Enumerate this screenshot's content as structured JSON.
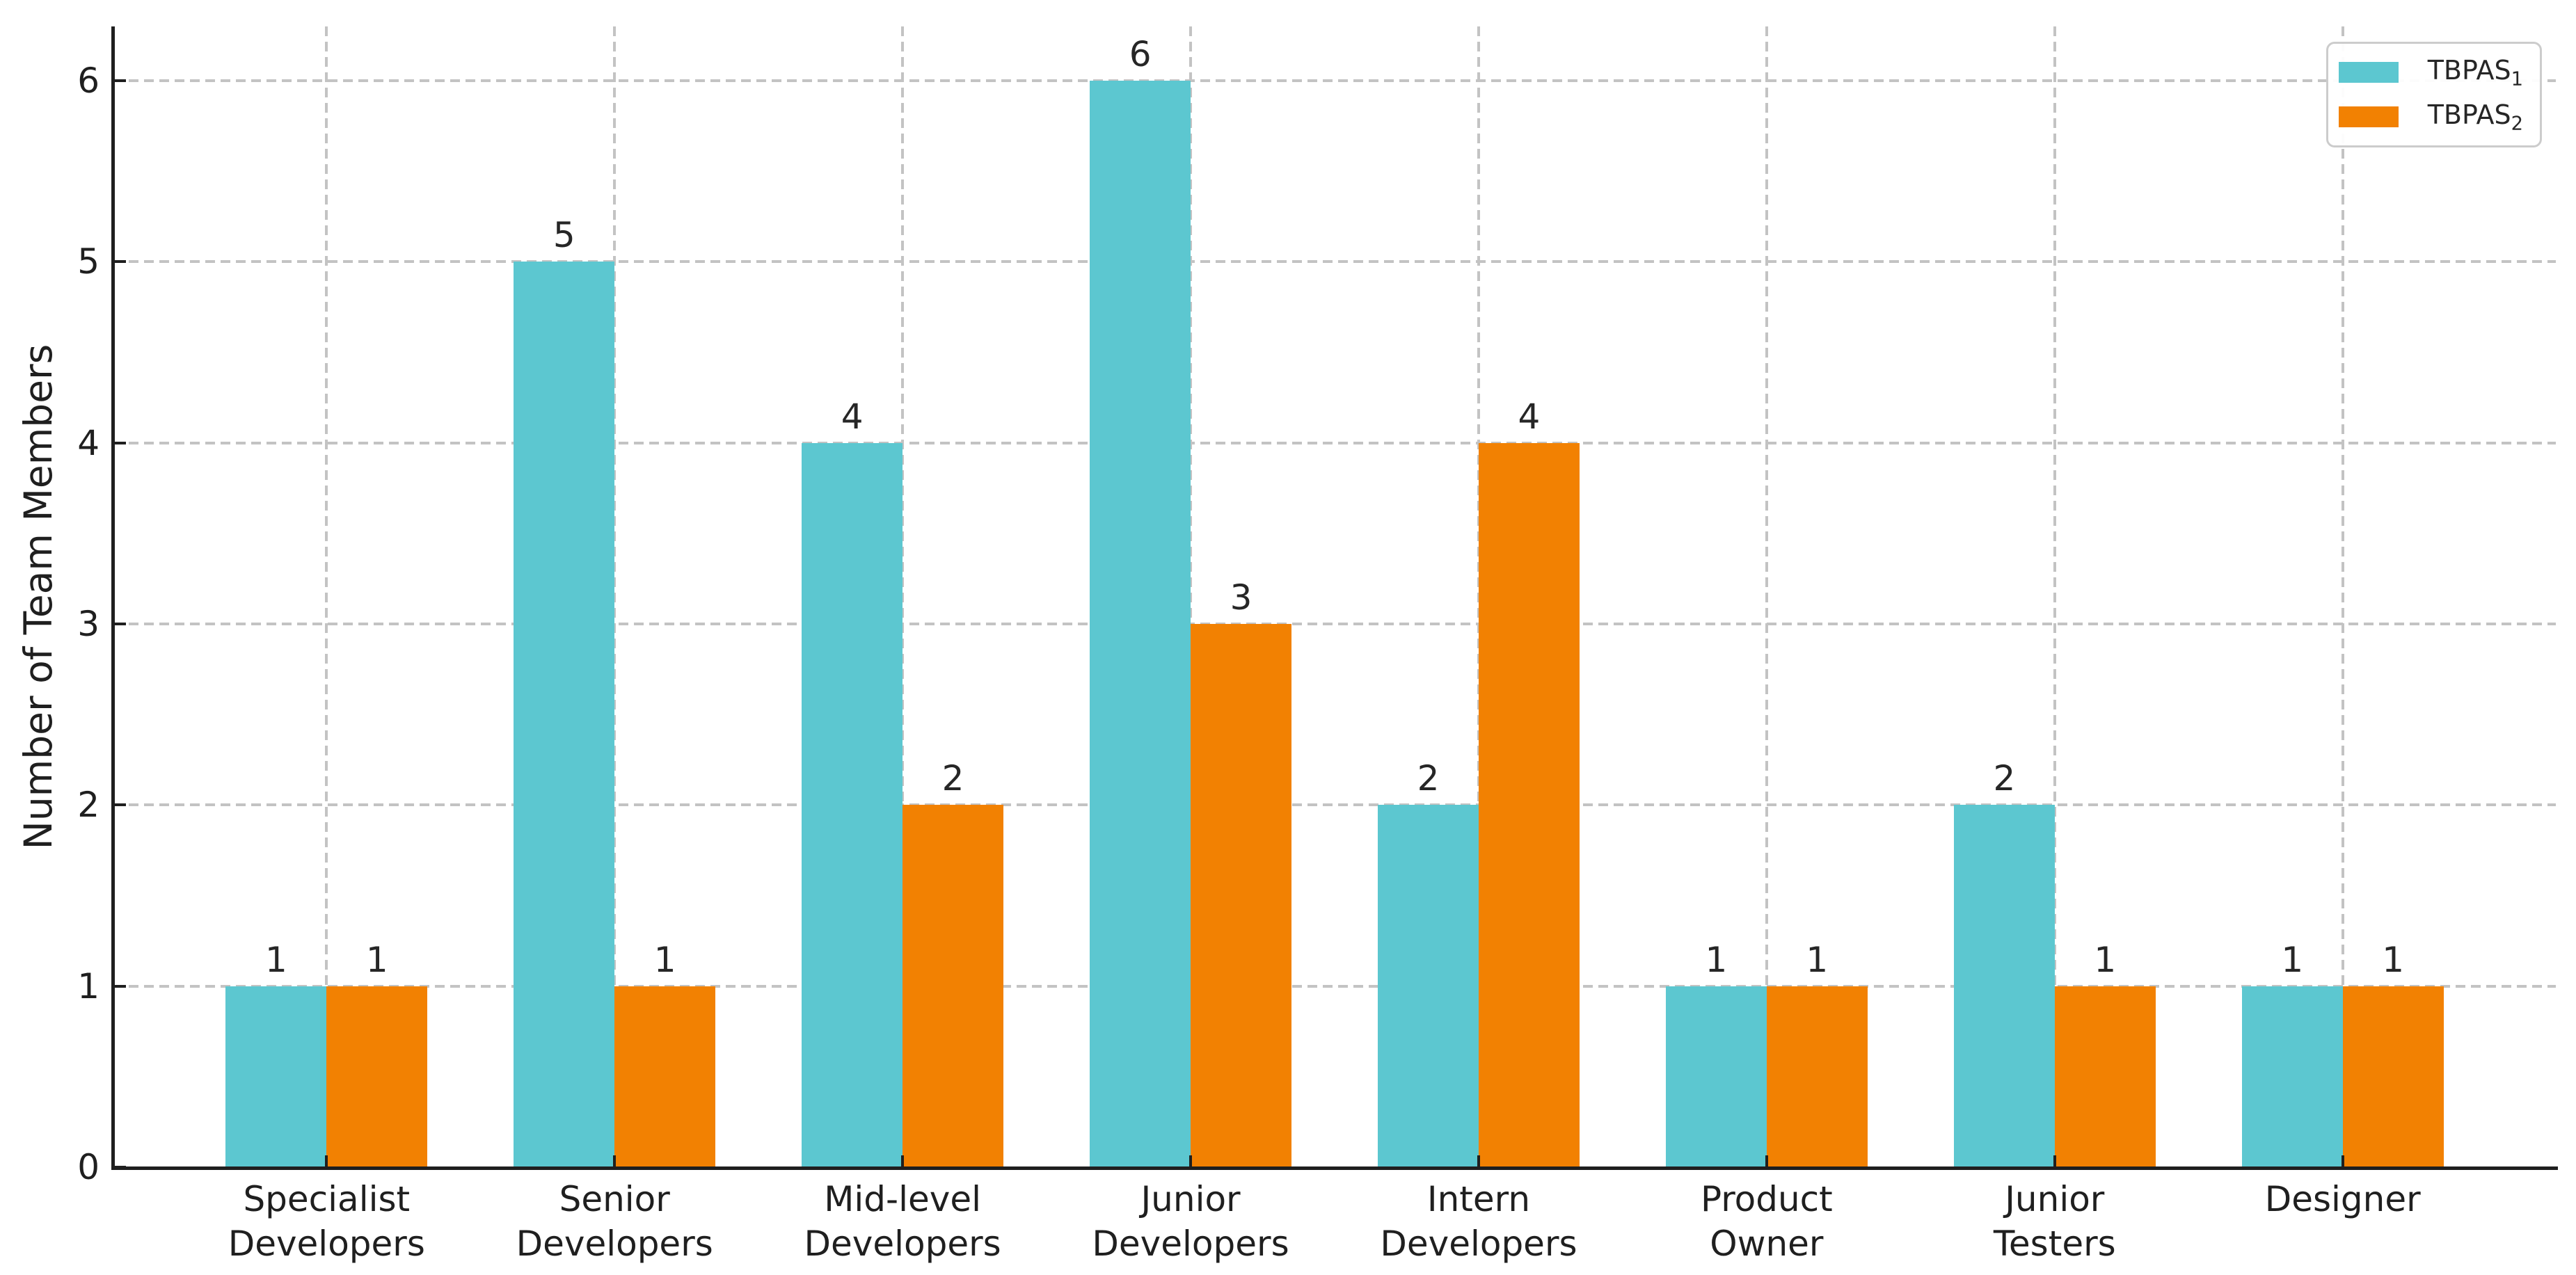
{
  "chart_data": {
    "type": "bar",
    "title": "",
    "xlabel": "",
    "ylabel": "Number of Team Members",
    "categories": [
      "Specialist Developers",
      "Senior Developers",
      "Mid-level Developers",
      "Junior Developers",
      "Intern Developers",
      "Product Owner",
      "Junior Testers",
      "Designer"
    ],
    "category_lines": [
      [
        "Specialist",
        "Developers"
      ],
      [
        "Senior",
        "Developers"
      ],
      [
        "Mid-level",
        "Developers"
      ],
      [
        "Junior",
        "Developers"
      ],
      [
        "Intern",
        "Developers"
      ],
      [
        "Product",
        "Owner"
      ],
      [
        "Junior",
        "Testers"
      ],
      [
        "Designer"
      ]
    ],
    "series": [
      {
        "name": "TBPAS",
        "name_sub": "1",
        "color": "#5cc7d0",
        "values": [
          1,
          5,
          4,
          6,
          2,
          1,
          2,
          1
        ]
      },
      {
        "name": "TBPAS",
        "name_sub": "2",
        "color": "#f28102",
        "values": [
          1,
          1,
          2,
          3,
          4,
          1,
          1,
          1
        ]
      }
    ],
    "value_labels_shown": true,
    "yticks": [
      0,
      1,
      2,
      3,
      4,
      5,
      6
    ],
    "ylim": [
      0,
      6.3
    ],
    "xlim": [
      -0.74,
      7.74
    ],
    "bar_width": 0.35,
    "grid": {
      "line_style": "dashed",
      "color": "#c3c3c3",
      "horizontal": true,
      "vertical": true,
      "axisbelow": true
    },
    "legend": {
      "position": "upper right",
      "entries": [
        {
          "label": "TBPAS",
          "sub": "1",
          "color": "#5cc7d0"
        },
        {
          "label": "TBPAS",
          "sub": "2",
          "color": "#f28102"
        }
      ]
    },
    "colors": {
      "axis": "#1f1f1f",
      "text": "#262626",
      "background": "#ffffff",
      "legend_border": "#cccccc"
    }
  }
}
